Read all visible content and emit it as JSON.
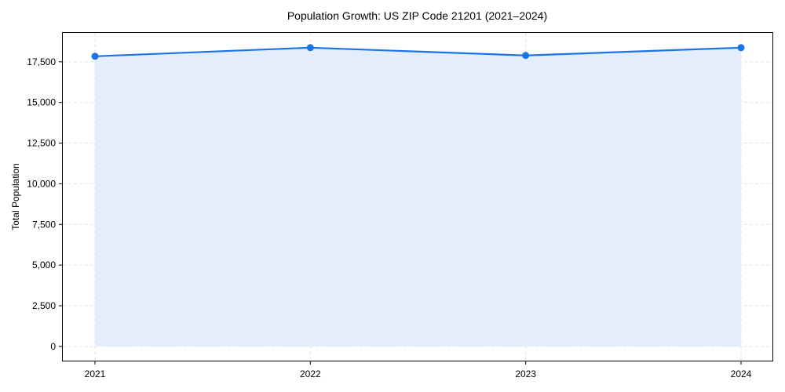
{
  "chart_data": {
    "type": "area",
    "title": "Population Growth: US ZIP Code 21201 (2021–2024)",
    "xlabel": "",
    "ylabel": "Total Population",
    "categories": [
      "2021",
      "2022",
      "2023",
      "2024"
    ],
    "series": [
      {
        "name": "Total Population",
        "values": [
          17840,
          18370,
          17890,
          18370
        ],
        "color": "#1a73e8",
        "fill": "#e3edfc"
      }
    ],
    "yticks": [
      0,
      2500,
      5000,
      7500,
      10000,
      12500,
      15000,
      17500
    ],
    "ytick_labels": [
      "0",
      "2,500",
      "5,000",
      "7,500",
      "10,000",
      "12,500",
      "15,000",
      "17,500"
    ],
    "ylim": [
      -900,
      19300
    ],
    "grid": true,
    "legend": "none"
  }
}
